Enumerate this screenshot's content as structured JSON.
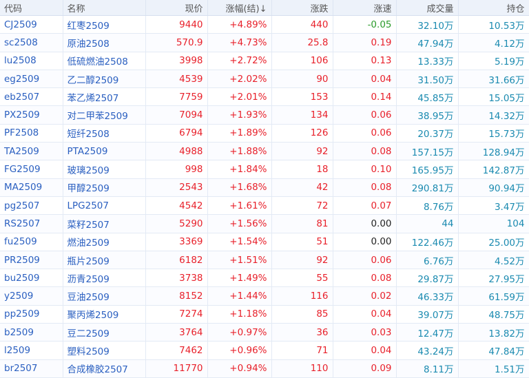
{
  "headers": [
    "代码",
    "名称",
    "现价",
    "涨幅(结)↓",
    "涨跌",
    "涨速",
    "成交量",
    "持仓"
  ],
  "colors": {
    "up": "#e8202a",
    "down": "#2a9a2a",
    "flat": "#222222",
    "volume": "#1a8ab0",
    "code": "#2a5fc0"
  },
  "rows": [
    [
      "CJ2509",
      "红枣2509",
      "9440",
      "+4.89%",
      "440",
      "-0.05",
      "32.10万",
      "10.53万"
    ],
    [
      "sc2508",
      "原油2508",
      "570.9",
      "+4.73%",
      "25.8",
      "0.19",
      "47.94万",
      "4.12万"
    ],
    [
      "lu2508",
      "低硫燃油2508",
      "3998",
      "+2.72%",
      "106",
      "0.13",
      "13.33万",
      "5.19万"
    ],
    [
      "eg2509",
      "乙二醇2509",
      "4539",
      "+2.02%",
      "90",
      "0.04",
      "31.50万",
      "31.66万"
    ],
    [
      "eb2507",
      "苯乙烯2507",
      "7759",
      "+2.01%",
      "153",
      "0.14",
      "45.85万",
      "15.05万"
    ],
    [
      "PX2509",
      "对二甲苯2509",
      "7094",
      "+1.93%",
      "134",
      "0.06",
      "38.95万",
      "14.32万"
    ],
    [
      "PF2508",
      "短纤2508",
      "6794",
      "+1.89%",
      "126",
      "0.06",
      "20.37万",
      "15.73万"
    ],
    [
      "TA2509",
      "PTA2509",
      "4988",
      "+1.88%",
      "92",
      "0.08",
      "157.15万",
      "128.94万"
    ],
    [
      "FG2509",
      "玻璃2509",
      "998",
      "+1.84%",
      "18",
      "0.10",
      "165.95万",
      "142.87万"
    ],
    [
      "MA2509",
      "甲醇2509",
      "2543",
      "+1.68%",
      "42",
      "0.08",
      "290.81万",
      "90.94万"
    ],
    [
      "pg2507",
      "LPG2507",
      "4542",
      "+1.61%",
      "72",
      "0.07",
      "8.76万",
      "3.47万"
    ],
    [
      "RS2507",
      "菜籽2507",
      "5290",
      "+1.56%",
      "81",
      "0.00",
      "44",
      "104"
    ],
    [
      "fu2509",
      "燃油2509",
      "3369",
      "+1.54%",
      "51",
      "0.00",
      "122.46万",
      "25.00万"
    ],
    [
      "PR2509",
      "瓶片2509",
      "6182",
      "+1.51%",
      "92",
      "0.06",
      "6.76万",
      "4.52万"
    ],
    [
      "bu2509",
      "沥青2509",
      "3738",
      "+1.49%",
      "55",
      "0.08",
      "29.87万",
      "27.95万"
    ],
    [
      "y2509",
      "豆油2509",
      "8152",
      "+1.44%",
      "116",
      "0.02",
      "46.33万",
      "61.59万"
    ],
    [
      "pp2509",
      "聚丙烯2509",
      "7274",
      "+1.18%",
      "85",
      "0.04",
      "39.07万",
      "48.75万"
    ],
    [
      "b2509",
      "豆二2509",
      "3764",
      "+0.97%",
      "36",
      "0.03",
      "12.47万",
      "13.82万"
    ],
    [
      "l2509",
      "塑料2509",
      "7462",
      "+0.96%",
      "71",
      "0.04",
      "43.24万",
      "47.84万"
    ],
    [
      "br2507",
      "合成橡胶2507",
      "11770",
      "+0.94%",
      "110",
      "0.09",
      "8.11万",
      "1.51万"
    ]
  ]
}
